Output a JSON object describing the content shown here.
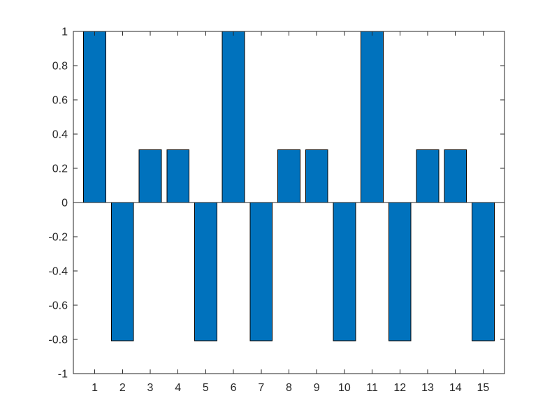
{
  "chart_data": {
    "type": "bar",
    "title": "",
    "xlabel": "",
    "ylabel": "",
    "categories": [
      "1",
      "2",
      "3",
      "4",
      "5",
      "6",
      "7",
      "8",
      "9",
      "10",
      "11",
      "12",
      "13",
      "14",
      "15"
    ],
    "values": [
      1,
      -0.809,
      0.309,
      0.309,
      -0.809,
      1,
      -0.809,
      0.309,
      0.309,
      -0.809,
      1,
      -0.809,
      0.309,
      0.309,
      -0.809
    ],
    "ylim": [
      -1,
      1
    ],
    "xlim": [
      0.23,
      15.77
    ],
    "yticks": [
      1,
      0.8,
      0.6,
      0.4,
      0.2,
      0,
      -0.2,
      -0.4,
      -0.6,
      -0.8,
      -1
    ],
    "ytick_labels": [
      "1",
      "0.8",
      "0.6",
      "0.4",
      "0.2",
      "0",
      "-0.2",
      "-0.4",
      "-0.6",
      "-0.8",
      "-1"
    ],
    "xticks": [
      1,
      2,
      3,
      4,
      5,
      6,
      7,
      8,
      9,
      10,
      11,
      12,
      13,
      14,
      15
    ],
    "xtick_labels": [
      "1",
      "2",
      "3",
      "4",
      "5",
      "6",
      "7",
      "8",
      "9",
      "10",
      "11",
      "12",
      "13",
      "14",
      "15"
    ],
    "bar_color": "#0072BD",
    "edge_color": "#000000",
    "grid": false,
    "box": true
  }
}
